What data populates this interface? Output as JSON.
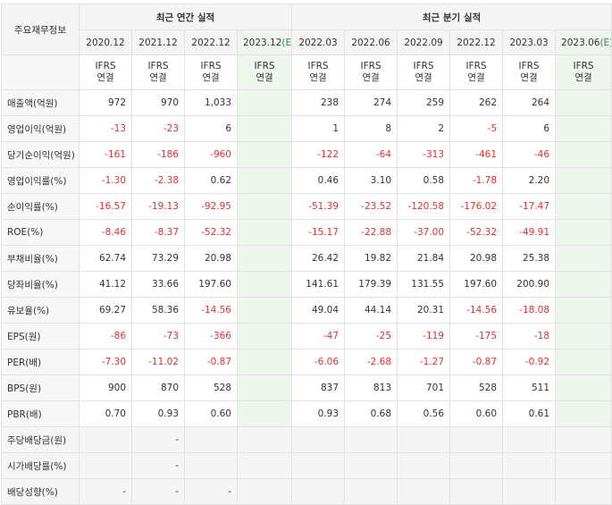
{
  "header": {
    "corner_label": "주요재무정보",
    "annual_title": "최근 연간 실적",
    "quarterly_title": "최근 분기 실적"
  },
  "periods": [
    {
      "label": "2020.12",
      "est": ""
    },
    {
      "label": "2021.12",
      "est": ""
    },
    {
      "label": "2022.12",
      "est": ""
    },
    {
      "label": "2023.12",
      "est": "(E)"
    },
    {
      "label": "2022.03",
      "est": ""
    },
    {
      "label": "2022.06",
      "est": ""
    },
    {
      "label": "2022.09",
      "est": ""
    },
    {
      "label": "2022.12",
      "est": ""
    },
    {
      "label": "2023.03",
      "est": ""
    },
    {
      "label": "2023.06",
      "est": "(E)"
    }
  ],
  "ifrs": {
    "line1": "IFRS",
    "line2": "연결"
  },
  "rows": [
    {
      "label": "매출액(억원)",
      "values": [
        "972",
        "970",
        "1,033",
        "",
        "238",
        "274",
        "259",
        "262",
        "264",
        ""
      ]
    },
    {
      "label": "영업이익(억원)",
      "values": [
        "-13",
        "-23",
        "6",
        "",
        "1",
        "8",
        "2",
        "-5",
        "6",
        ""
      ]
    },
    {
      "label": "당기순이익(억원)",
      "values": [
        "-161",
        "-186",
        "-960",
        "",
        "-122",
        "-64",
        "-313",
        "-461",
        "-46",
        ""
      ]
    },
    {
      "label": "영업이익률(%)",
      "values": [
        "-1.30",
        "-2.38",
        "0.62",
        "",
        "0.46",
        "3.10",
        "0.58",
        "-1.78",
        "2.20",
        ""
      ]
    },
    {
      "label": "순이익률(%)",
      "values": [
        "-16.57",
        "-19.13",
        "-92.95",
        "",
        "-51.39",
        "-23.52",
        "-120.58",
        "-176.02",
        "-17.47",
        ""
      ]
    },
    {
      "label": "ROE(%)",
      "values": [
        "-8.46",
        "-8.37",
        "-52.32",
        "",
        "-15.17",
        "-22.88",
        "-37.00",
        "-52.32",
        "-49.91",
        ""
      ]
    },
    {
      "label": "부채비율(%)",
      "values": [
        "62.74",
        "73.29",
        "20.98",
        "",
        "26.42",
        "19.82",
        "21.84",
        "20.98",
        "25.38",
        ""
      ]
    },
    {
      "label": "당좌비율(%)",
      "values": [
        "41.12",
        "33.66",
        "197.60",
        "",
        "141.61",
        "179.39",
        "131.55",
        "197.60",
        "200.90",
        ""
      ]
    },
    {
      "label": "유보율(%)",
      "values": [
        "69.27",
        "58.36",
        "-14.56",
        "",
        "49.04",
        "44.14",
        "20.31",
        "-14.56",
        "-18.08",
        ""
      ]
    },
    {
      "label": "EPS(원)",
      "values": [
        "-86",
        "-73",
        "-366",
        "",
        "-47",
        "-25",
        "-119",
        "-175",
        "-18",
        ""
      ]
    },
    {
      "label": "PER(배)",
      "values": [
        "-7.30",
        "-11.02",
        "-0.87",
        "",
        "-6.06",
        "-2.68",
        "-1.27",
        "-0.87",
        "-0.92",
        ""
      ]
    },
    {
      "label": "BPS(원)",
      "values": [
        "900",
        "870",
        "528",
        "",
        "837",
        "813",
        "701",
        "528",
        "511",
        ""
      ]
    },
    {
      "label": "PBR(배)",
      "values": [
        "0.70",
        "0.93",
        "0.60",
        "",
        "0.93",
        "0.68",
        "0.56",
        "0.60",
        "0.61",
        ""
      ]
    },
    {
      "label": "주당배당금(원)",
      "values": [
        "",
        "-",
        "",
        "",
        "",
        "",
        "",
        "",
        "",
        ""
      ]
    },
    {
      "label": "시가배당률(%)",
      "values": [
        "",
        "-",
        "",
        "",
        "",
        "",
        "",
        "",
        "",
        ""
      ]
    },
    {
      "label": "배당성향(%)",
      "values": [
        "-",
        "-",
        "-",
        "",
        "",
        "",
        "",
        "",
        "",
        ""
      ]
    }
  ],
  "colors": {
    "negative": "#e0322e",
    "ifrs": "#f07a28",
    "estimate_bg": "#eef6ee"
  }
}
